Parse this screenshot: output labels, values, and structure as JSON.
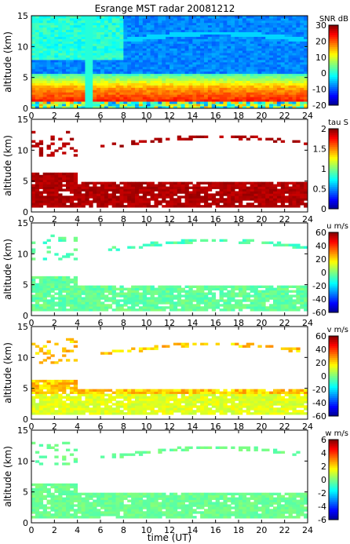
{
  "title": "Esrange MST radar 20081212",
  "xlabel": "time (UT)",
  "chart_data": [
    {
      "type": "heatmap",
      "id": "snr",
      "title": "Esrange MST radar 20081212",
      "ylabel": "altitude (km)",
      "xlabel": "",
      "xlim": [
        0,
        24
      ],
      "ylim": [
        0,
        15
      ],
      "xticks": [
        0,
        2,
        4,
        6,
        8,
        10,
        12,
        14,
        16,
        18,
        20,
        22,
        24
      ],
      "yticks": [
        0,
        5,
        10,
        15
      ],
      "colorbar": {
        "label": "SNR dB",
        "range": [
          -20,
          30
        ],
        "ticks": [
          30,
          20,
          10,
          0,
          -10,
          -20
        ]
      }
    },
    {
      "type": "heatmap",
      "id": "tau",
      "ylabel": "altitude (km)",
      "xlim": [
        0,
        24
      ],
      "ylim": [
        0,
        15
      ],
      "xticks": [
        0,
        2,
        4,
        6,
        8,
        10,
        12,
        14,
        16,
        18,
        20,
        22,
        24
      ],
      "yticks": [
        0,
        5,
        10,
        15
      ],
      "colorbar": {
        "label": "tau S",
        "range": [
          0,
          2
        ],
        "ticks": [
          2,
          1.5,
          1,
          0.5,
          0
        ]
      }
    },
    {
      "type": "heatmap",
      "id": "u",
      "ylabel": "altitude (km)",
      "xlim": [
        0,
        24
      ],
      "ylim": [
        0,
        15
      ],
      "xticks": [
        0,
        2,
        4,
        6,
        8,
        10,
        12,
        14,
        16,
        18,
        20,
        22,
        24
      ],
      "yticks": [
        0,
        5,
        10,
        15
      ],
      "colorbar": {
        "label": "u m/s",
        "range": [
          -60,
          60
        ],
        "ticks": [
          60,
          40,
          20,
          0,
          -20,
          -40,
          -60
        ]
      }
    },
    {
      "type": "heatmap",
      "id": "v",
      "ylabel": "altitude (km)",
      "xlim": [
        0,
        24
      ],
      "ylim": [
        0,
        15
      ],
      "xticks": [
        0,
        2,
        4,
        6,
        8,
        10,
        12,
        14,
        16,
        18,
        20,
        22,
        24
      ],
      "yticks": [
        0,
        5,
        10,
        15
      ],
      "colorbar": {
        "label": "v m/s",
        "range": [
          -60,
          60
        ],
        "ticks": [
          60,
          40,
          20,
          0,
          -20,
          -40,
          -60
        ]
      }
    },
    {
      "type": "heatmap",
      "id": "w",
      "ylabel": "altitude (km)",
      "xlabel": "time (UT)",
      "xlim": [
        0,
        24
      ],
      "ylim": [
        0,
        15
      ],
      "xticks": [
        0,
        2,
        4,
        6,
        8,
        10,
        12,
        14,
        16,
        18,
        20,
        22,
        24
      ],
      "yticks": [
        0,
        5,
        10,
        15
      ],
      "colorbar": {
        "label": "w m/s",
        "range": [
          -6,
          6
        ],
        "ticks": [
          6,
          4,
          2,
          0,
          -2,
          -4,
          -6
        ]
      }
    }
  ]
}
